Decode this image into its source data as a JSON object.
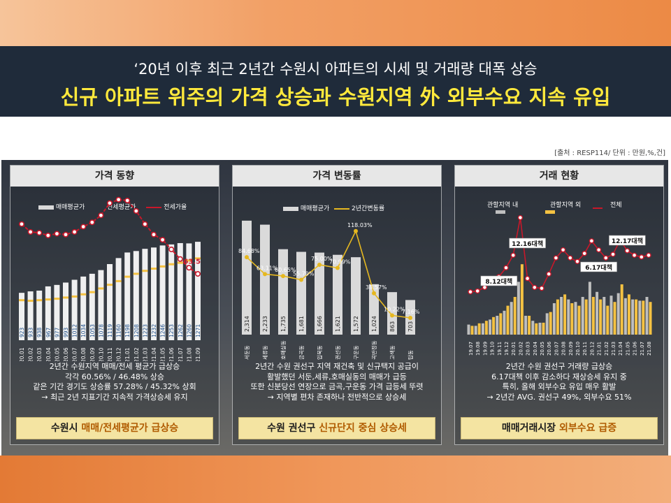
{
  "header": {
    "subtitle": "‘20년 이후 최근 2년간 수원시 아파트의 시세 및 거래량 대폭 상승",
    "title": "신규 아파트 위주의 가격 상승과 수원지역 外 외부수요 지속 유입"
  },
  "source_note": "[출처 : RESP114/ 단위 : 만원,%,건]",
  "colors": {
    "header_bg": "#1f2b3a",
    "title_yellow": "#ffe93c",
    "bar_white": "#ffffff",
    "bar_gray": "#bfbfbf",
    "bar_yellow": "#f5c242",
    "line_red": "#c8182a",
    "line_yellow": "#e6b820",
    "banner": "#f4e4a2"
  },
  "panels": [
    {
      "title": "가격 동향",
      "text_lines": [
        "2년간 수원지역 매매/전세 평균가 급상승",
        "각각 60.56% / 46.48% 상승",
        "같은 기간 경기도 상승률 57.28% / 45.32% 상회",
        "→ 최근 2년 지표기간 지속적 가격상승세 유지"
      ],
      "banner_pre": "수원시 ",
      "banner_highlight": "매매/전세평균가 급상승",
      "banner_post": ""
    },
    {
      "title": "가격 변동률",
      "text_lines": [
        "2년간 수원 권선구 지역 재건축 및 신규택지 공급이",
        "활발했던 서둔,세류,호매실동의 매매가 급등",
        "또한 신분당선 연장으로 금곡,구운동 가격 급등세 뚜렷",
        "→ 지역별 편차 존재하나 전반적으로 상승세"
      ],
      "banner_pre": "수원 권선구 ",
      "banner_highlight": "신규단지 중심 상승세",
      "banner_post": ""
    },
    {
      "title": "거래 현황",
      "text_lines": [
        "2년간 수원 권선구 거래량 급상승",
        "6.17대책 이후 감소하다 재상승세 유지 중",
        "특히, 올해 외부수요 유입 매우 활발",
        "→ 2년간 AVG. 권선구 49%, 외부수요 51%"
      ],
      "banner_pre": "매매거래시장 ",
      "banner_highlight": "외부수요 급증",
      "banner_post": ""
    }
  ],
  "chart_data": [
    {
      "type": "bar",
      "legend": [
        "매매평균가",
        "전세평균가",
        "전세가율"
      ],
      "categories": [
        "20.01",
        "20.02",
        "20.03",
        "20.04",
        "20.05",
        "20.06",
        "20.07",
        "20.08",
        "20.09",
        "20.10",
        "20.11",
        "20.12",
        "21.01",
        "21.02",
        "21.03",
        "21.04",
        "21.05",
        "21.06",
        "21.07",
        "21.08",
        "21.09"
      ],
      "series": [
        {
          "name": "매매평균가",
          "values": [
            923,
            933,
            938,
            967,
            977,
            993,
            1012,
            1034,
            1053,
            1078,
            1119,
            1160,
            1198,
            1208,
            1223,
            1232,
            1246,
            1253,
            1262,
            1260,
            1271
          ]
        },
        {
          "name": "전세평균가",
          "values": [
            880,
            876,
            880,
            885,
            890,
            898,
            905,
            920,
            935,
            960,
            985,
            1010,
            1040,
            1060,
            1080,
            1095,
            1110,
            1125,
            1135,
            1150,
            1165
          ]
        },
        {
          "name": "전세가율",
          "values": [
            68.5,
            67.6,
            67.5,
            67.2,
            67.4,
            67.3,
            67.6,
            68.2,
            68.7,
            69.5,
            70.9,
            71.3,
            71.2,
            70.0,
            68.5,
            67.3,
            66.7,
            65.6,
            64.5,
            63.5,
            62.8
          ]
        }
      ],
      "labeled_point": "63.5"
    },
    {
      "type": "bar",
      "legend": [
        "매매평균가",
        "2년간변동률"
      ],
      "categories": [
        "서둔동",
        "세류동",
        "호매실동",
        "금곡동",
        "입북동",
        "권선동",
        "구운동",
        "곡반정동",
        "고색동",
        "탑동"
      ],
      "series": [
        {
          "name": "매매평균가",
          "values": [
            2314,
            2233,
            1735,
            1681,
            1666,
            1621,
            1572,
            1024,
            863,
            703
          ]
        },
        {
          "name": "2년간변동률",
          "values": [
            84.68,
            63.11,
            60.65,
            55.79,
            75.0,
            70.99,
            118.03,
            38.57,
            10.22,
            7.16
          ]
        }
      ],
      "bar_labels": [
        "2,314",
        "2,233",
        "1,735",
        "1,681",
        "1,666",
        "1,621",
        "1,572",
        "1,024",
        "863",
        "703"
      ],
      "line_labels": [
        "84.68%",
        "63.11%",
        "60.65%",
        "55.79%",
        "75.00%",
        "70.99%",
        "118.03%",
        "38.57%",
        "10.22%",
        "7.16%"
      ]
    },
    {
      "type": "bar",
      "legend": [
        "관할지역 내",
        "관할지역 외",
        "전체"
      ],
      "categories": [
        "19.07",
        "19.08",
        "19.09",
        "19.10",
        "19.11",
        "19.12",
        "20.01",
        "20.02",
        "20.03",
        "20.04",
        "20.05",
        "20.06",
        "20.07",
        "20.08",
        "20.09",
        "20.10",
        "20.11",
        "20.12",
        "21.01",
        "21.02",
        "21.03",
        "21.04",
        "21.05",
        "21.06",
        "21.07",
        "21.08"
      ],
      "x_tick_labels": [
        "19.07",
        "19.08",
        "19.09",
        "19.10",
        "19.11",
        "19.12",
        "20.01",
        "20.02",
        "20.03",
        "20.04",
        "20.05",
        "20.06",
        "20.07",
        "20.08",
        "20.09",
        "20.10",
        "20.11",
        "20.12",
        "21.01",
        "21.02",
        "21.03",
        "21.04",
        "21.05",
        "21.06",
        "21.07",
        "21.08"
      ],
      "series": [
        {
          "name": "관할지역 내",
          "values": [
            80,
            70,
            90,
            120,
            150,
            190,
            260,
            420,
            150,
            110,
            95,
            170,
            250,
            300,
            280,
            260,
            300,
            420,
            340,
            300,
            310,
            330,
            290,
            280,
            270,
            300
          ]
        },
        {
          "name": "관할지역 외",
          "values": [
            70,
            90,
            110,
            140,
            170,
            230,
            300,
            560,
            150,
            90,
            95,
            180,
            280,
            320,
            250,
            230,
            280,
            300,
            280,
            230,
            260,
            400,
            320,
            280,
            270,
            260
          ]
        },
        {
          "name": "전체",
          "values": [
            150,
            160,
            200,
            260,
            320,
            420,
            560,
            980,
            300,
            200,
            190,
            350,
            530,
            620,
            530,
            490,
            580,
            720,
            620,
            530,
            570,
            730,
            610,
            560,
            540,
            560
          ]
        }
      ],
      "annotations": [
        "8.12대책",
        "12.16대책",
        "6.17대책",
        "12.17대책"
      ]
    }
  ]
}
